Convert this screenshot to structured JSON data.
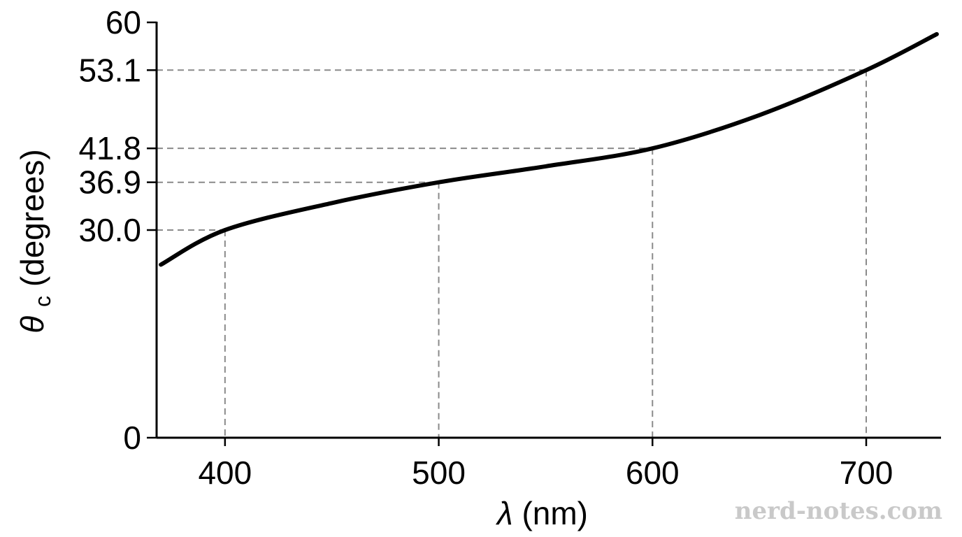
{
  "chart_data": {
    "type": "line",
    "xlabel_symbol": "λ",
    "xlabel_unit": "(nm)",
    "ylabel_symbol": "θ",
    "ylabel_subscript": "c",
    "ylabel_unit": "(degrees)",
    "xlim": [
      368,
      735
    ],
    "ylim": [
      0,
      60
    ],
    "x_ticks": [
      {
        "value": 400,
        "label": "400"
      },
      {
        "value": 500,
        "label": "500"
      },
      {
        "value": 600,
        "label": "600"
      },
      {
        "value": 700,
        "label": "700"
      }
    ],
    "y_ticks": [
      {
        "value": 0,
        "label": "0"
      },
      {
        "value": 30.0,
        "label": "30.0"
      },
      {
        "value": 36.9,
        "label": "36.9"
      },
      {
        "value": 41.8,
        "label": "41.8"
      },
      {
        "value": 53.1,
        "label": "53.1"
      },
      {
        "value": 60,
        "label": "60"
      }
    ],
    "reference_points": [
      {
        "x": 400,
        "y": 30.0
      },
      {
        "x": 500,
        "y": 36.9
      },
      {
        "x": 600,
        "y": 41.8
      },
      {
        "x": 700,
        "y": 53.1
      }
    ],
    "series": [
      {
        "x": [
          370,
          400,
          450,
          500,
          550,
          600,
          650,
          700,
          733
        ],
        "y": [
          25.0,
          30.0,
          33.9,
          36.9,
          39.2,
          41.8,
          46.6,
          53.1,
          58.3
        ]
      }
    ],
    "grid": false,
    "legend": "none"
  },
  "watermark": "nerd-notes.com"
}
